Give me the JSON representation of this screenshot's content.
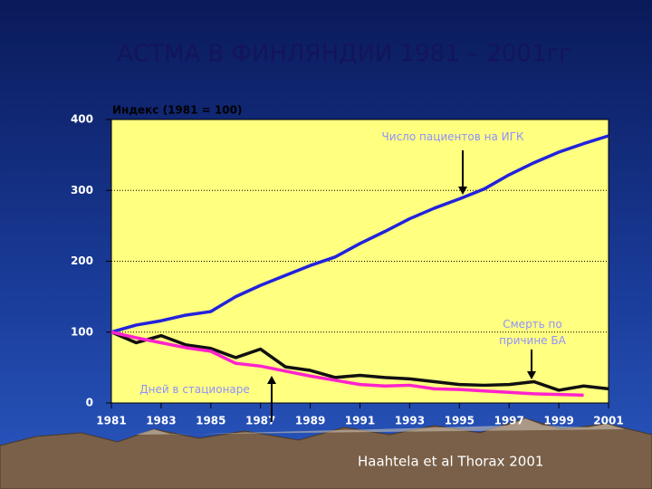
{
  "chart_data": {
    "type": "line",
    "title": "АСТМА В ФИНЛЯНДИИ 1981 – 2001гг",
    "y_label": "Индекс (1981 = 100)",
    "source": "Haahtela et al Thorax 2001",
    "x": [
      1981,
      1982,
      1983,
      1984,
      1985,
      1986,
      1987,
      1988,
      1989,
      1990,
      1991,
      1992,
      1993,
      1994,
      1995,
      1996,
      1997,
      1998,
      1999,
      2000,
      2001
    ],
    "xlim": [
      1981,
      2001
    ],
    "xticks": [
      1981,
      1983,
      1985,
      1987,
      1989,
      1991,
      1993,
      1995,
      1997,
      1999,
      2001
    ],
    "ylim": [
      0,
      400
    ],
    "yticks": [
      0,
      100,
      200,
      300,
      400
    ],
    "grid": true,
    "series": [
      {
        "name": "Число пациентов на ИГК",
        "color": "#2222dd",
        "values": [
          100,
          110,
          116,
          124,
          129,
          150,
          166,
          180,
          194,
          206,
          225,
          242,
          260,
          275,
          288,
          302,
          322,
          339,
          354,
          366,
          377
        ]
      },
      {
        "name": "Смерть по причине БА",
        "color": "#111111",
        "values": [
          100,
          85,
          95,
          82,
          77,
          64,
          76,
          51,
          46,
          36,
          39,
          36,
          34,
          30,
          26,
          25,
          26,
          30,
          18,
          24,
          20
        ]
      },
      {
        "name": "Дней в стационаре",
        "color": "#ff22cc",
        "values": [
          100,
          92,
          85,
          78,
          73,
          56,
          52,
          45,
          38,
          32,
          26,
          24,
          25,
          20,
          19,
          17,
          15,
          13,
          12,
          11,
          null
        ]
      }
    ]
  }
}
